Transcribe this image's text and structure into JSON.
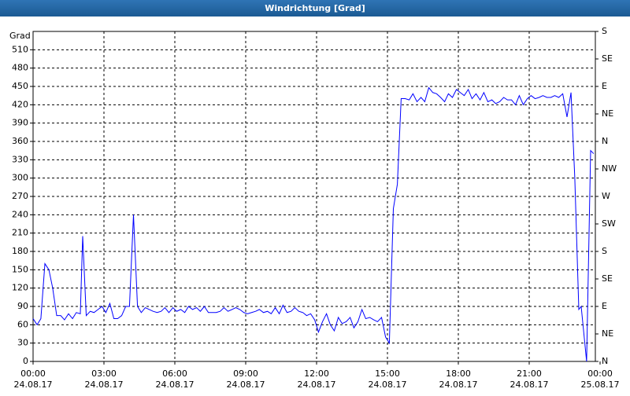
{
  "chart_data": {
    "type": "line",
    "title": "Windrichtung [Grad]",
    "ylabel": "Grad",
    "x": [
      0,
      0.17,
      0.33,
      0.5,
      0.67,
      0.83,
      1,
      1.17,
      1.33,
      1.5,
      1.67,
      1.83,
      2,
      2.1,
      2.25,
      2.42,
      2.58,
      2.75,
      2.92,
      3.08,
      3.25,
      3.42,
      3.58,
      3.75,
      3.92,
      4.08,
      4.25,
      4.42,
      4.58,
      4.75,
      4.92,
      5.08,
      5.25,
      5.42,
      5.58,
      5.75,
      5.92,
      6.08,
      6.25,
      6.42,
      6.58,
      6.75,
      6.92,
      7.08,
      7.25,
      7.42,
      7.58,
      7.75,
      7.92,
      8.08,
      8.25,
      8.42,
      8.58,
      8.75,
      8.92,
      9.08,
      9.25,
      9.42,
      9.58,
      9.75,
      9.92,
      10.08,
      10.25,
      10.42,
      10.58,
      10.75,
      10.92,
      11.08,
      11.25,
      11.42,
      11.58,
      11.75,
      11.92,
      12.08,
      12.25,
      12.42,
      12.58,
      12.75,
      12.92,
      13.08,
      13.25,
      13.42,
      13.58,
      13.75,
      13.92,
      14.08,
      14.25,
      14.42,
      14.58,
      14.75,
      14.92,
      15.08,
      15.25,
      15.42,
      15.58,
      15.75,
      15.92,
      16.08,
      16.25,
      16.42,
      16.58,
      16.75,
      16.92,
      17.08,
      17.25,
      17.42,
      17.58,
      17.75,
      17.92,
      18.08,
      18.25,
      18.42,
      18.58,
      18.75,
      18.92,
      19.08,
      19.25,
      19.42,
      19.58,
      19.75,
      19.92,
      20.08,
      20.25,
      20.42,
      20.58,
      20.75,
      20.92,
      21.08,
      21.25,
      21.42,
      21.58,
      21.75,
      21.92,
      22.08,
      22.25,
      22.42,
      22.6,
      22.77,
      22.93,
      23.1,
      23.2,
      23.43,
      23.6,
      23.73
    ],
    "series": [
      {
        "color": "#0000ff",
        "values": [
          70,
          60,
          70,
          160,
          150,
          120,
          75,
          75,
          68,
          78,
          70,
          80,
          78,
          205,
          75,
          82,
          80,
          85,
          90,
          80,
          95,
          70,
          70,
          75,
          90,
          90,
          240,
          90,
          80,
          88,
          85,
          82,
          80,
          82,
          88,
          80,
          88,
          82,
          85,
          80,
          90,
          85,
          88,
          82,
          90,
          80,
          80,
          80,
          82,
          88,
          82,
          85,
          88,
          85,
          80,
          78,
          80,
          82,
          85,
          80,
          82,
          78,
          88,
          78,
          92,
          80,
          82,
          88,
          82,
          80,
          75,
          78,
          68,
          48,
          65,
          78,
          60,
          50,
          72,
          62,
          65,
          72,
          55,
          65,
          85,
          70,
          72,
          68,
          65,
          72,
          40,
          30,
          250,
          290,
          430,
          430,
          428,
          438,
          425,
          432,
          425,
          448,
          440,
          438,
          432,
          425,
          438,
          432,
          445,
          440,
          435,
          445,
          430,
          438,
          428,
          440,
          425,
          428,
          422,
          425,
          432,
          428,
          428,
          420,
          435,
          420,
          430,
          435,
          430,
          432,
          435,
          432,
          432,
          435,
          432,
          438,
          400,
          440,
          300,
          85,
          90,
          0,
          345,
          340
        ]
      }
    ],
    "xlim": [
      0,
      23.8
    ],
    "xticks": [
      {
        "value": 0,
        "label": "00:00"
      },
      {
        "value": 3,
        "label": "03:00"
      },
      {
        "value": 6,
        "label": "06:00"
      },
      {
        "value": 9,
        "label": "09:00"
      },
      {
        "value": 12,
        "label": "12:00"
      },
      {
        "value": 15,
        "label": "15:00"
      },
      {
        "value": 18,
        "label": "18:00"
      },
      {
        "value": 21,
        "label": "21:00"
      },
      {
        "value": 24,
        "label": "00:00"
      }
    ],
    "xtick_dates": [
      "24.08.17",
      "24.08.17",
      "24.08.17",
      "24.08.17",
      "24.08.17",
      "24.08.17",
      "24.08.17",
      "24.08.17",
      "25.08.17"
    ],
    "ylim": [
      0,
      540
    ],
    "yticks": [
      0,
      30,
      60,
      90,
      120,
      150,
      180,
      210,
      240,
      270,
      300,
      330,
      360,
      390,
      420,
      450,
      480,
      510
    ],
    "y2lim": [
      0,
      540
    ],
    "y2ticks": [
      {
        "value": 0,
        "label": "N"
      },
      {
        "value": 45,
        "label": "NE"
      },
      {
        "value": 90,
        "label": "E"
      },
      {
        "value": 135,
        "label": "SE"
      },
      {
        "value": 180,
        "label": "S"
      },
      {
        "value": 225,
        "label": "SW"
      },
      {
        "value": 270,
        "label": "W"
      },
      {
        "value": 315,
        "label": "NW"
      },
      {
        "value": 360,
        "label": "N"
      },
      {
        "value": 405,
        "label": "NE"
      },
      {
        "value": 450,
        "label": "E"
      },
      {
        "value": 495,
        "label": "SE"
      },
      {
        "value": 540,
        "label": "S"
      }
    ],
    "grid": true
  }
}
